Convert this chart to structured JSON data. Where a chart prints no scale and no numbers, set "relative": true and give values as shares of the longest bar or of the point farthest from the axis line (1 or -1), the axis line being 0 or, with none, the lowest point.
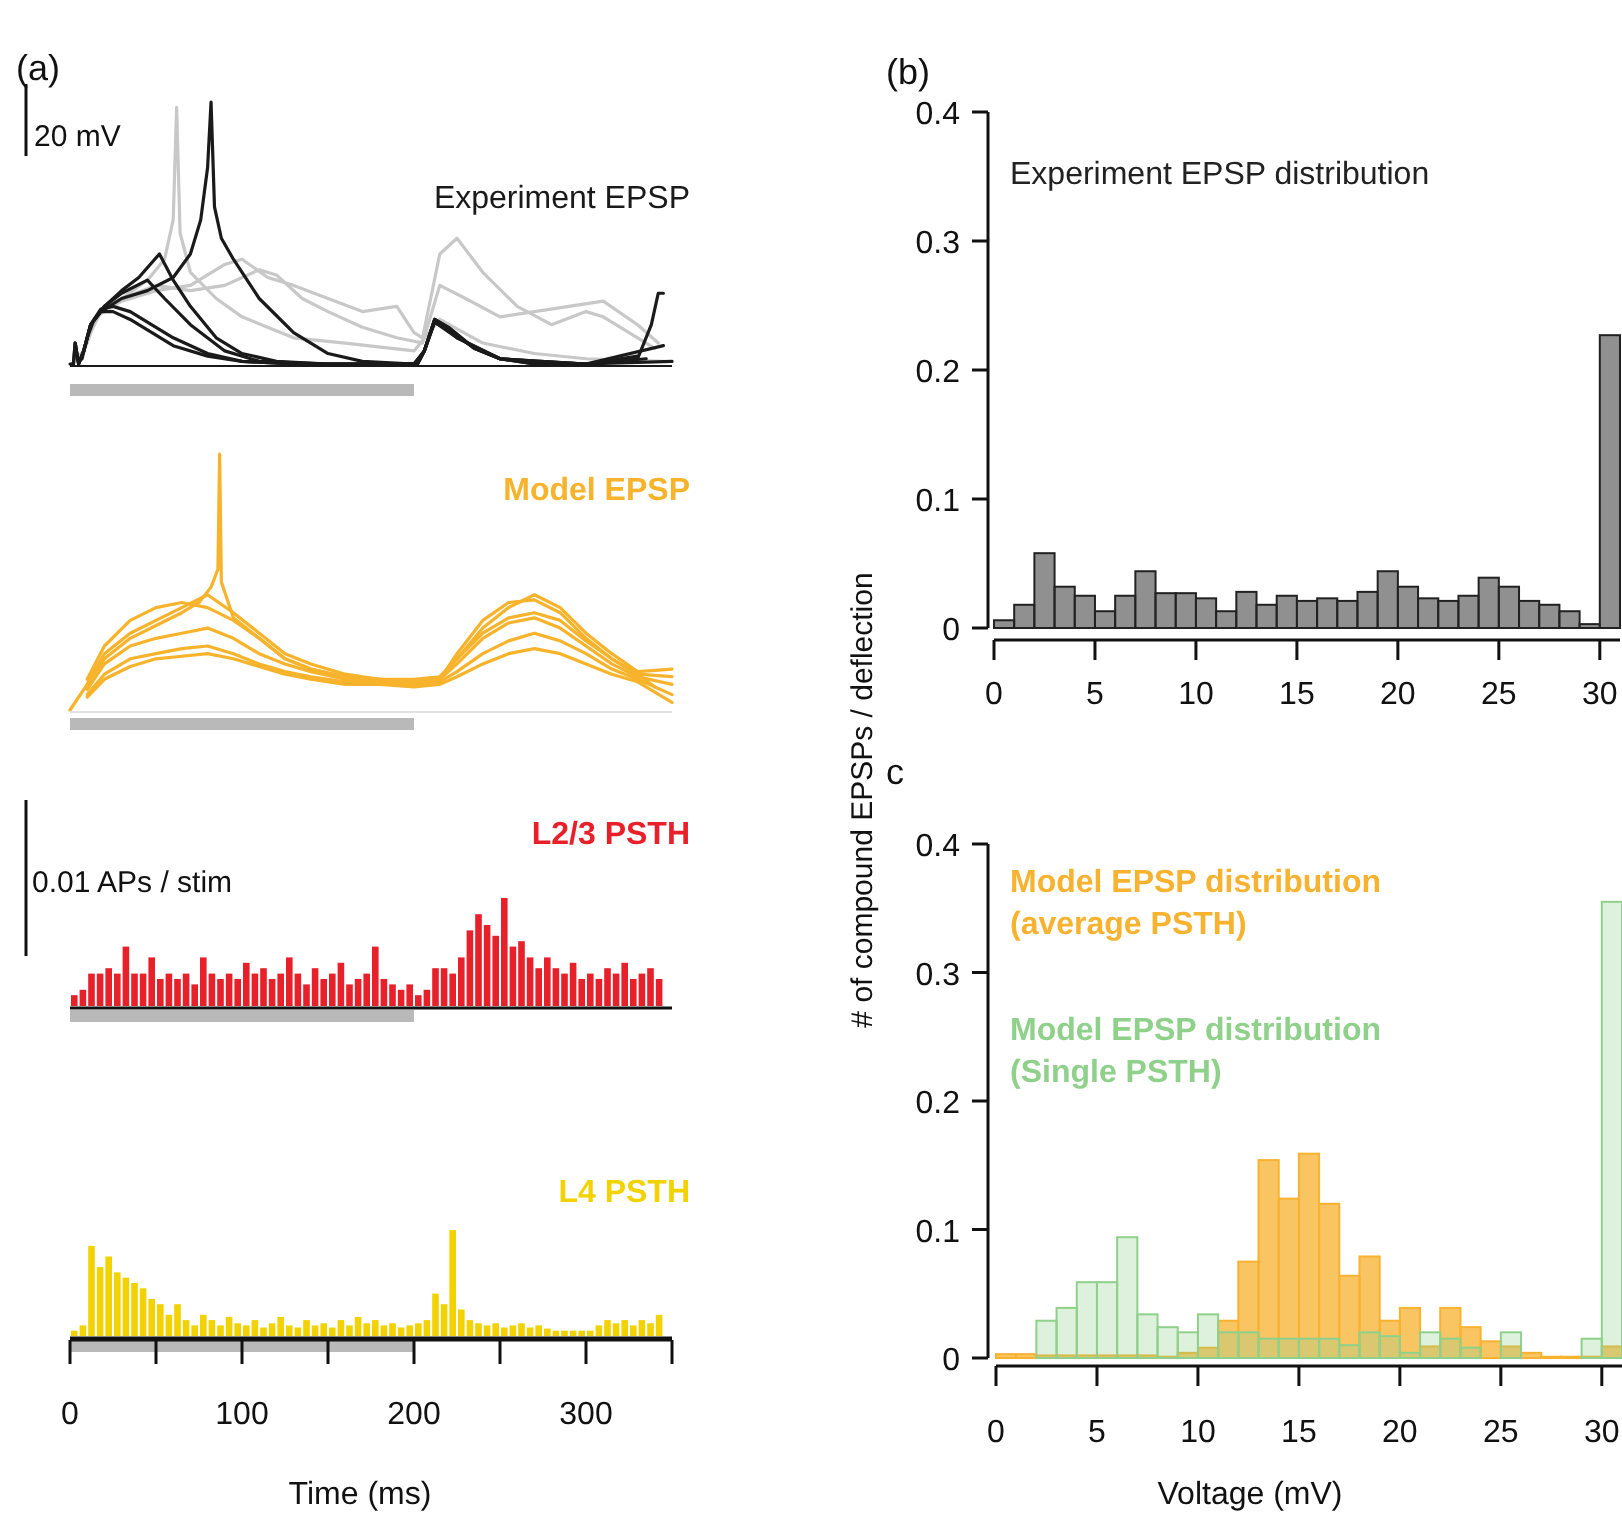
{
  "chart_data": [
    {
      "type": "line",
      "title": "Experiment EPSP",
      "relative": true,
      "xlim": [
        0,
        350
      ],
      "tick_labels": false,
      "annotations": [
        "(a)",
        "20 mV"
      ],
      "series": [
        {
          "color": "#c8c8c8",
          "x": [
            4,
            8,
            15,
            30,
            45,
            55,
            60,
            62,
            64,
            70,
            85,
            100,
            130,
            160,
            200,
            215,
            240,
            270,
            300,
            345
          ],
          "values": [
            0.02,
            0.05,
            0.18,
            0.25,
            0.32,
            0.4,
            0.55,
            0.98,
            0.5,
            0.35,
            0.25,
            0.18,
            0.1,
            0.08,
            0.05,
            0.17,
            0.08,
            0.04,
            0.02,
            0.01
          ]
        },
        {
          "color": "#c8c8c8",
          "x": [
            6,
            10,
            15,
            30,
            50,
            70,
            90,
            100,
            115,
            130,
            150,
            170,
            190,
            200,
            205,
            215,
            225,
            240,
            260,
            280,
            300,
            310,
            330,
            340
          ],
          "values": [
            0.03,
            0.08,
            0.18,
            0.24,
            0.28,
            0.3,
            0.38,
            0.4,
            0.33,
            0.3,
            0.25,
            0.2,
            0.22,
            0.12,
            0.1,
            0.42,
            0.48,
            0.35,
            0.22,
            0.15,
            0.2,
            0.18,
            0.1,
            0.06
          ]
        },
        {
          "color": "#c8c8c8",
          "x": [
            8,
            12,
            18,
            30,
            50,
            70,
            90,
            110,
            120,
            135,
            150,
            170,
            190,
            205,
            215,
            230,
            250,
            270,
            290,
            310,
            330,
            342
          ],
          "values": [
            0.06,
            0.12,
            0.2,
            0.25,
            0.3,
            0.28,
            0.3,
            0.36,
            0.34,
            0.25,
            0.2,
            0.14,
            0.1,
            0.08,
            0.3,
            0.25,
            0.18,
            0.2,
            0.22,
            0.24,
            0.15,
            0.08
          ]
        },
        {
          "color": "#1a1a1a",
          "x": [
            0,
            2,
            3,
            5,
            8,
            12,
            18,
            25,
            35,
            45,
            60,
            80,
            100,
            130,
            200,
            202,
            206,
            212,
            220,
            235,
            250,
            270,
            300,
            350
          ],
          "values": [
            0,
            0,
            0.08,
            0,
            0.05,
            0.15,
            0.2,
            0.2,
            0.17,
            0.13,
            0.07,
            0.03,
            0.01,
            0,
            0,
            0,
            0.05,
            0.17,
            0.14,
            0.06,
            0.02,
            0,
            0,
            0.01
          ]
        },
        {
          "color": "#1a1a1a",
          "x": [
            1,
            2,
            3,
            5,
            8,
            12,
            18,
            25,
            35,
            45,
            60,
            80,
            100,
            130,
            200,
            202,
            206,
            212,
            220,
            235,
            250,
            270,
            300,
            345
          ],
          "values": [
            0,
            0,
            0.08,
            0,
            0.05,
            0.15,
            0.21,
            0.22,
            0.2,
            0.16,
            0.1,
            0.04,
            0.01,
            0,
            0,
            0,
            0.05,
            0.16,
            0.13,
            0.06,
            0.02,
            0.01,
            0,
            0.07
          ]
        },
        {
          "color": "#1a1a1a",
          "x": [
            3,
            5,
            8,
            12,
            18,
            30,
            45,
            60,
            70,
            76,
            80,
            82,
            84,
            88,
            95,
            110,
            130,
            150,
            170,
            200,
            202,
            206,
            212,
            220,
            235,
            250,
            270,
            300,
            330,
            338,
            342,
            345
          ],
          "values": [
            0.08,
            0,
            0.05,
            0.15,
            0.2,
            0.25,
            0.28,
            0.33,
            0.42,
            0.55,
            0.75,
            1.0,
            0.6,
            0.48,
            0.4,
            0.25,
            0.12,
            0.04,
            0.01,
            0,
            0,
            0.05,
            0.17,
            0.14,
            0.06,
            0.02,
            0,
            0,
            0.02,
            0.15,
            0.27,
            0.27
          ]
        },
        {
          "color": "#1a1a1a",
          "x": [
            5,
            8,
            12,
            20,
            30,
            40,
            52,
            60,
            70,
            85,
            100,
            120,
            150,
            200,
            206,
            212,
            225,
            250,
            300,
            335
          ],
          "values": [
            0,
            0.05,
            0.15,
            0.22,
            0.28,
            0.33,
            0.42,
            0.32,
            0.22,
            0.1,
            0.04,
            0.01,
            0,
            0,
            0.05,
            0.16,
            0.1,
            0.02,
            0,
            0.02
          ]
        },
        {
          "color": "#1a1a1a",
          "x": [
            7,
            10,
            14,
            20,
            30,
            45,
            55,
            70,
            90,
            110,
            150,
            200,
            206,
            212,
            225,
            250,
            300,
            330
          ],
          "values": [
            0.02,
            0.1,
            0.17,
            0.22,
            0.27,
            0.32,
            0.25,
            0.15,
            0.05,
            0.01,
            0,
            0,
            0.05,
            0.17,
            0.1,
            0.02,
            0,
            0.03
          ]
        }
      ]
    },
    {
      "type": "line",
      "title": "Model EPSP",
      "relative": true,
      "xlim": [
        0,
        350
      ],
      "tick_labels": false,
      "x": [
        10,
        20,
        35,
        50,
        65,
        80,
        95,
        110,
        125,
        140,
        160,
        180,
        200,
        215,
        225,
        240,
        255,
        270,
        285,
        300,
        315,
        330,
        350
      ],
      "series": [
        {
          "color": "#f7b32b",
          "values": [
            0.1,
            0.22,
            0.3,
            0.35,
            0.4,
            0.45,
            0.38,
            0.3,
            0.22,
            0.18,
            0.14,
            0.12,
            0.12,
            0.13,
            0.2,
            0.32,
            0.4,
            0.45,
            0.4,
            0.3,
            0.22,
            0.15,
            0.16
          ]
        },
        {
          "color": "#f7b32b",
          "values": [
            0.08,
            0.18,
            0.25,
            0.28,
            0.3,
            0.32,
            0.28,
            0.22,
            0.18,
            0.15,
            0.12,
            0.11,
            0.1,
            0.12,
            0.18,
            0.28,
            0.34,
            0.36,
            0.32,
            0.25,
            0.18,
            0.13,
            0.1
          ]
        },
        {
          "color": "#f7b32b",
          "values": [
            0.06,
            0.14,
            0.2,
            0.22,
            0.24,
            0.25,
            0.22,
            0.18,
            0.15,
            0.13,
            0.11,
            0.1,
            0.1,
            0.11,
            0.15,
            0.22,
            0.27,
            0.3,
            0.27,
            0.22,
            0.16,
            0.12,
            0.06
          ]
        },
        {
          "color": "#f7b32b",
          "values": [
            0.12,
            0.25,
            0.35,
            0.4,
            0.42,
            0.4,
            0.35,
            0.28,
            0.2,
            0.16,
            0.13,
            0.12,
            0.11,
            0.12,
            0.22,
            0.35,
            0.42,
            0.43,
            0.38,
            0.28,
            0.2,
            0.14,
            0.13
          ]
        },
        {
          "color": "#f7b32b",
          "values": [
            0.05,
            0.12,
            0.17,
            0.2,
            0.21,
            0.22,
            0.2,
            0.17,
            0.14,
            0.12,
            0.1,
            0.1,
            0.09,
            0.1,
            0.13,
            0.18,
            0.22,
            0.24,
            0.22,
            0.18,
            0.14,
            0.11,
            0.03
          ]
        },
        {
          "color": "#f7b32b",
          "x": [
            0,
            10,
            20,
            35,
            50,
            65,
            75,
            82,
            86,
            87,
            88,
            95,
            110,
            125,
            140,
            160,
            180,
            200,
            215,
            225,
            240,
            255,
            270,
            285,
            300,
            315,
            330,
            340
          ],
          "values": [
            0,
            0.1,
            0.2,
            0.28,
            0.33,
            0.38,
            0.42,
            0.48,
            0.55,
            1.0,
            0.5,
            0.36,
            0.28,
            0.2,
            0.16,
            0.13,
            0.12,
            0.11,
            0.12,
            0.2,
            0.3,
            0.36,
            0.38,
            0.35,
            0.27,
            0.2,
            0.14,
            0.09
          ]
        }
      ]
    },
    {
      "type": "bar",
      "title": "L2/3 PSTH",
      "relative": true,
      "xlim": [
        0,
        350
      ],
      "tick_labels": false,
      "color": "#e8202a",
      "annotations": [
        "0.01 APs / stim"
      ],
      "x": [
        2.5,
        7.5,
        12.5,
        17.5,
        22.5,
        27.5,
        32.5,
        37.5,
        42.5,
        47.5,
        52.5,
        57.5,
        62.5,
        67.5,
        72.5,
        77.5,
        82.5,
        87.5,
        92.5,
        97.5,
        102.5,
        107.5,
        112.5,
        117.5,
        122.5,
        127.5,
        132.5,
        137.5,
        142.5,
        147.5,
        152.5,
        157.5,
        162.5,
        167.5,
        172.5,
        177.5,
        182.5,
        187.5,
        192.5,
        197.5,
        202.5,
        207.5,
        212.5,
        217.5,
        222.5,
        227.5,
        232.5,
        237.5,
        242.5,
        247.5,
        252.5,
        257.5,
        262.5,
        267.5,
        272.5,
        277.5,
        282.5,
        287.5,
        292.5,
        297.5,
        302.5,
        307.5,
        312.5,
        317.5,
        322.5,
        327.5,
        332.5,
        337.5,
        342.5
      ],
      "values": [
        0.1,
        0.15,
        0.3,
        0.3,
        0.35,
        0.3,
        0.55,
        0.3,
        0.3,
        0.45,
        0.25,
        0.3,
        0.25,
        0.3,
        0.2,
        0.45,
        0.3,
        0.25,
        0.3,
        0.25,
        0.4,
        0.3,
        0.35,
        0.25,
        0.3,
        0.45,
        0.3,
        0.2,
        0.35,
        0.25,
        0.3,
        0.4,
        0.2,
        0.25,
        0.3,
        0.55,
        0.25,
        0.2,
        0.15,
        0.2,
        0.1,
        0.15,
        0.35,
        0.35,
        0.3,
        0.45,
        0.7,
        0.85,
        0.75,
        0.65,
        1.0,
        0.55,
        0.6,
        0.45,
        0.35,
        0.45,
        0.35,
        0.3,
        0.4,
        0.25,
        0.3,
        0.25,
        0.35,
        0.3,
        0.4,
        0.25,
        0.3,
        0.35,
        0.25
      ]
    },
    {
      "type": "bar",
      "title": "L4 PSTH",
      "relative": true,
      "xlabel": "Time (ms)",
      "xlim": [
        0,
        350
      ],
      "xticks": [
        0,
        {
          "value": 50,
          "label": null
        },
        100,
        {
          "value": 150,
          "label": null
        },
        200,
        {
          "value": 250,
          "label": null
        },
        300,
        {
          "value": 350,
          "label": null
        }
      ],
      "tick_labels": "x",
      "color": "#f2d200",
      "x": [
        2.5,
        7.5,
        12.5,
        17.5,
        22.5,
        27.5,
        32.5,
        37.5,
        42.5,
        47.5,
        52.5,
        57.5,
        62.5,
        67.5,
        72.5,
        77.5,
        82.5,
        87.5,
        92.5,
        97.5,
        102.5,
        107.5,
        112.5,
        117.5,
        122.5,
        127.5,
        132.5,
        137.5,
        142.5,
        147.5,
        152.5,
        157.5,
        162.5,
        167.5,
        172.5,
        177.5,
        182.5,
        187.5,
        192.5,
        197.5,
        202.5,
        207.5,
        212.5,
        217.5,
        222.5,
        227.5,
        232.5,
        237.5,
        242.5,
        247.5,
        252.5,
        257.5,
        262.5,
        267.5,
        272.5,
        277.5,
        282.5,
        287.5,
        292.5,
        297.5,
        302.5,
        307.5,
        312.5,
        317.5,
        322.5,
        327.5,
        332.5,
        337.5,
        342.5
      ],
      "values": [
        0.05,
        0.1,
        0.85,
        0.65,
        0.75,
        0.6,
        0.55,
        0.5,
        0.45,
        0.35,
        0.3,
        0.2,
        0.3,
        0.15,
        0.1,
        0.2,
        0.15,
        0.1,
        0.18,
        0.12,
        0.1,
        0.15,
        0.08,
        0.12,
        0.18,
        0.1,
        0.08,
        0.15,
        0.1,
        0.12,
        0.08,
        0.15,
        0.1,
        0.18,
        0.12,
        0.15,
        0.1,
        0.12,
        0.08,
        0.1,
        0.12,
        0.15,
        0.4,
        0.3,
        1.0,
        0.25,
        0.15,
        0.12,
        0.1,
        0.12,
        0.08,
        0.1,
        0.12,
        0.08,
        0.1,
        0.07,
        0.05,
        0.05,
        0.05,
        0.05,
        0.05,
        0.1,
        0.15,
        0.12,
        0.15,
        0.1,
        0.15,
        0.12,
        0.2
      ]
    },
    {
      "type": "histogram",
      "title": "Experiment EPSP distribution",
      "ylabel": "# of compound EPSPs / deflection",
      "annotations": [
        "(b)"
      ],
      "color": "#6b6b6b",
      "xlim": [
        0,
        31
      ],
      "xticks": [
        0,
        5,
        10,
        15,
        20,
        25,
        30
      ],
      "ylim": [
        0,
        0.4
      ],
      "yticks": [
        0,
        0.1,
        0.2,
        0.3,
        0.4
      ],
      "bins": [
        0,
        1,
        2,
        3,
        4,
        5,
        6,
        7,
        8,
        9,
        10,
        11,
        12,
        13,
        14,
        15,
        16,
        17,
        18,
        19,
        20,
        21,
        22,
        23,
        24,
        25,
        26,
        27,
        28,
        29,
        30,
        31
      ],
      "values": [
        0.006,
        0.018,
        0.058,
        0.032,
        0.025,
        0.013,
        0.025,
        0.044,
        0.027,
        0.027,
        0.023,
        0.013,
        0.028,
        0.018,
        0.025,
        0.021,
        0.023,
        0.021,
        0.028,
        0.044,
        0.032,
        0.023,
        0.021,
        0.025,
        0.039,
        0.032,
        0.021,
        0.018,
        0.013,
        0.003,
        0.227
      ]
    },
    {
      "type": "histogram",
      "xlabel": "Voltage (mV)",
      "annotations": [
        "c"
      ],
      "legend": "top left",
      "xlim": [
        0,
        31
      ],
      "xticks": [
        0,
        5,
        10,
        15,
        20,
        25,
        30
      ],
      "ylim": [
        0,
        0.4
      ],
      "yticks": [
        0,
        0.1,
        0.2,
        0.3,
        0.4
      ],
      "bins": [
        0,
        1,
        2,
        3,
        4,
        5,
        6,
        7,
        8,
        9,
        10,
        11,
        12,
        13,
        14,
        15,
        16,
        17,
        18,
        19,
        20,
        21,
        22,
        23,
        24,
        25,
        26,
        27,
        28,
        29,
        30,
        31
      ],
      "series": [
        {
          "name": "Model EPSP distribution (average PSTH)",
          "color": "#f7b22f",
          "values": [
            0.003,
            0.003,
            0.002,
            0.002,
            0.002,
            0.002,
            0.002,
            0.002,
            0.001,
            0.004,
            0.008,
            0.029,
            0.075,
            0.154,
            0.124,
            0.159,
            0.12,
            0.064,
            0.079,
            0.029,
            0.039,
            0.009,
            0.039,
            0.024,
            0.013,
            0.009,
            0.004,
            0.001,
            0.001,
            0.001,
            0.009
          ]
        },
        {
          "name": "Model EPSP distribution (Single PSTH)",
          "color": "#8fd18a",
          "values": [
            0,
            null,
            0.029,
            0.039,
            0.059,
            0.059,
            0.094,
            0.034,
            0.024,
            0.02,
            0.034,
            0.02,
            0.02,
            0.015,
            0.015,
            0.015,
            0.015,
            0.01,
            0.02,
            0.017,
            0.004,
            0.02,
            0.015,
            0.008,
            null,
            0.02,
            null,
            0,
            0,
            0.015,
            0.355
          ]
        }
      ]
    }
  ]
}
